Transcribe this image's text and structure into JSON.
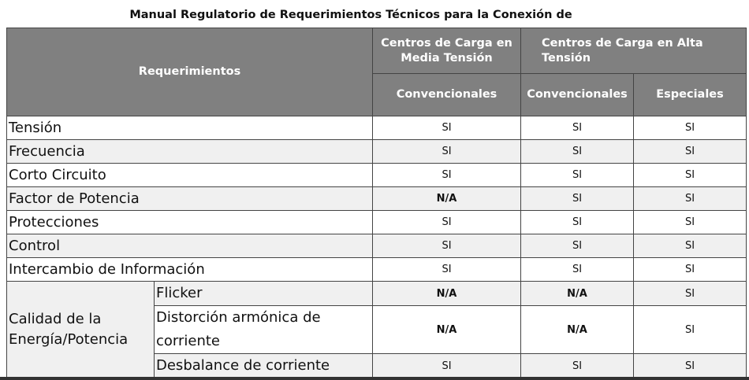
{
  "title": "Manual Regulatorio de Requerimientos Técnicos para la Conexión de",
  "header": {
    "req": "Requerimientos",
    "media": "Centros de Carga en Media Tensión",
    "alta": "Centros de Carga en Alta Tensión",
    "c1": "Convencionales",
    "c2": "Convencionales",
    "c3": "Especiales"
  },
  "rows": [
    {
      "label": "Tensión",
      "v": [
        "SI",
        "SI",
        "SI"
      ]
    },
    {
      "label": "Frecuencia",
      "v": [
        "SI",
        "SI",
        "SI"
      ]
    },
    {
      "label": "Corto Circuito",
      "v": [
        "SI",
        "SI",
        "SI"
      ]
    },
    {
      "label": "Factor de Potencia",
      "v": [
        "N/A",
        "SI",
        "SI"
      ]
    },
    {
      "label": "Protecciones",
      "v": [
        "SI",
        "SI",
        "SI"
      ]
    },
    {
      "label": "Control",
      "v": [
        "SI",
        "SI",
        "SI"
      ]
    },
    {
      "label": "Intercambio de Información",
      "v": [
        "SI",
        "SI",
        "SI"
      ]
    }
  ],
  "calidad": {
    "label": "Calidad de la Energía/Potencia",
    "rows": [
      {
        "label": "Flicker",
        "v": [
          "N/A",
          "N/A",
          "SI"
        ]
      },
      {
        "label": "Distorción armónica de corriente",
        "v": [
          "N/A",
          "N/A",
          "SI"
        ]
      },
      {
        "label": "Desbalance de corriente",
        "v": [
          "SI",
          "SI",
          "SI"
        ]
      }
    ]
  }
}
